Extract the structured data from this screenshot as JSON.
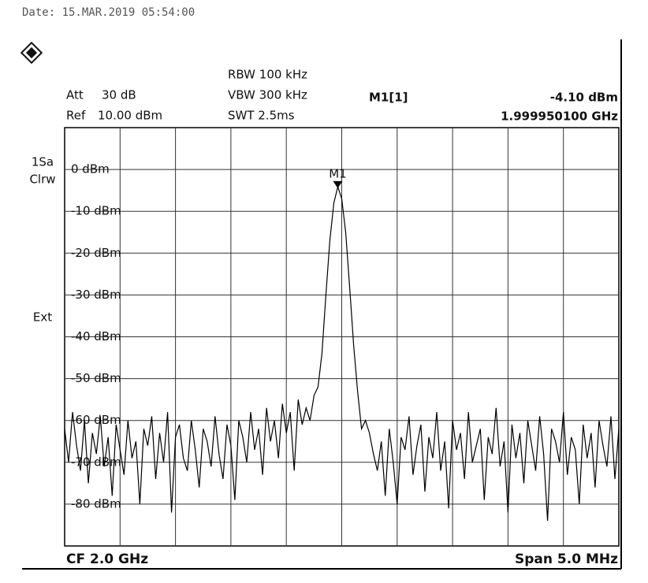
{
  "header": {
    "date": "Date: 15.MAR.2019  05:54:00",
    "att_label": "Att",
    "att": "30 dB",
    "ref_label": "Ref",
    "ref": "10.00 dBm",
    "rbw": "RBW 100 kHz",
    "vbw": "VBW 300 kHz",
    "swt": "SWT 2.5ms",
    "trace_mode": "1Sa",
    "trace_detector": "Clrw",
    "trigger": "Ext",
    "center": "CF 2.0 GHz",
    "span": "Span 5.0 MHz"
  },
  "chart_data": {
    "type": "line",
    "color": "#000000",
    "grid": true,
    "ylim": [
      -90,
      10
    ],
    "yticks": [
      {
        "value": 0,
        "label": "0 dBm"
      },
      {
        "value": -10,
        "label": "-10 dBm"
      },
      {
        "value": -20,
        "label": "-20 dBm"
      },
      {
        "value": -30,
        "label": "-30 dBm"
      },
      {
        "value": -40,
        "label": "-40 dBm"
      },
      {
        "value": -50,
        "label": "-50 dBm"
      },
      {
        "value": -60,
        "label": "-60 dBm"
      },
      {
        "value": -70,
        "label": "-70 dBm"
      },
      {
        "value": -80,
        "label": "-80 dBm"
      }
    ],
    "marker": {
      "label": "M1",
      "name": "M1[1]",
      "value": -4.1,
      "readout": "-4.10 dBm",
      "frequency": "1.999950100 GHz"
    },
    "values": [
      -62,
      -70,
      -58,
      -66,
      -72,
      -60,
      -75,
      -63,
      -68,
      -59,
      -71,
      -64,
      -78,
      -61,
      -67,
      -73,
      -60,
      -69,
      -65,
      -80,
      -62,
      -66,
      -59,
      -74,
      -63,
      -70,
      -58,
      -82,
      -64,
      -61,
      -69,
      -72,
      -60,
      -67,
      -76,
      -62,
      -65,
      -71,
      -59,
      -68,
      -74,
      -61,
      -66,
      -79,
      -60,
      -64,
      -70,
      -58,
      -67,
      -62,
      -73,
      -57,
      -65,
      -60,
      -69,
      -56,
      -63,
      -58,
      -72,
      -55,
      -61,
      -57,
      -60,
      -54,
      -52,
      -44,
      -30,
      -17,
      -8,
      -4.1,
      -7,
      -15,
      -28,
      -42,
      -53,
      -62,
      -60,
      -63,
      -68,
      -72,
      -65,
      -78,
      -62,
      -70,
      -80,
      -64,
      -67,
      -59,
      -73,
      -66,
      -61,
      -77,
      -64,
      -69,
      -58,
      -72,
      -65,
      -81,
      -60,
      -67,
      -63,
      -74,
      -58,
      -70,
      -66,
      -62,
      -79,
      -64,
      -68,
      -57,
      -71,
      -65,
      -82,
      -61,
      -69,
      -63,
      -75,
      -60,
      -66,
      -72,
      -59,
      -68,
      -84,
      -62,
      -65,
      -70,
      -58,
      -73,
      -64,
      -67,
      -80,
      -61,
      -69,
      -63,
      -76,
      -60,
      -66,
      -71,
      -59,
      -74,
      -62
    ]
  }
}
